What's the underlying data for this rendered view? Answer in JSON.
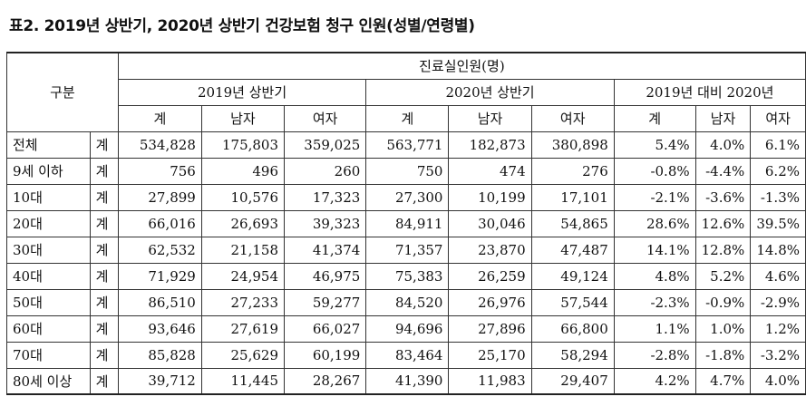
{
  "title": "표2. 2019년 상반기, 2020년 상반기 건강보험 청구 인원(성별/연령별)",
  "header": {
    "category": "구분",
    "group": "진료실인원(명)",
    "periods": [
      "2019년 상반기",
      "2020년 상반기",
      "2019년 대비 2020년"
    ],
    "columns": [
      "계",
      "남자",
      "여자",
      "계",
      "남자",
      "여자",
      "계",
      "남자",
      "여자"
    ]
  },
  "rows": [
    {
      "label": "전체",
      "sub": "계",
      "cells": [
        "534,828",
        "175,803",
        "359,025",
        "563,771",
        "182,873",
        "380,898",
        "5.4%",
        "4.0%",
        "6.1%"
      ]
    },
    {
      "label": "9세 이하",
      "sub": "계",
      "cells": [
        "756",
        "496",
        "260",
        "750",
        "474",
        "276",
        "-0.8%",
        "-4.4%",
        "6.2%"
      ]
    },
    {
      "label": "10대",
      "sub": "계",
      "cells": [
        "27,899",
        "10,576",
        "17,323",
        "27,300",
        "10,199",
        "17,101",
        "-2.1%",
        "-3.6%",
        "-1.3%"
      ]
    },
    {
      "label": "20대",
      "sub": "계",
      "cells": [
        "66,016",
        "26,693",
        "39,323",
        "84,911",
        "30,046",
        "54,865",
        "28.6%",
        "12.6%",
        "39.5%"
      ]
    },
    {
      "label": "30대",
      "sub": "계",
      "cells": [
        "62,532",
        "21,158",
        "41,374",
        "71,357",
        "23,870",
        "47,487",
        "14.1%",
        "12.8%",
        "14.8%"
      ]
    },
    {
      "label": "40대",
      "sub": "계",
      "cells": [
        "71,929",
        "24,954",
        "46,975",
        "75,383",
        "26,259",
        "49,124",
        "4.8%",
        "5.2%",
        "4.6%"
      ]
    },
    {
      "label": "50대",
      "sub": "계",
      "cells": [
        "86,510",
        "27,233",
        "59,277",
        "84,520",
        "26,976",
        "57,544",
        "-2.3%",
        "-0.9%",
        "-2.9%"
      ]
    },
    {
      "label": "60대",
      "sub": "계",
      "cells": [
        "93,646",
        "27,619",
        "66,027",
        "94,696",
        "27,896",
        "66,800",
        "1.1%",
        "1.0%",
        "1.2%"
      ]
    },
    {
      "label": "70대",
      "sub": "계",
      "cells": [
        "85,828",
        "25,629",
        "60,199",
        "83,464",
        "25,170",
        "58,294",
        "-2.8%",
        "-1.8%",
        "-3.2%"
      ]
    },
    {
      "label": "80세 이상",
      "sub": "계",
      "cells": [
        "39,712",
        "11,445",
        "28,267",
        "41,390",
        "11,983",
        "29,407",
        "4.2%",
        "4.7%",
        "4.0%"
      ]
    }
  ]
}
